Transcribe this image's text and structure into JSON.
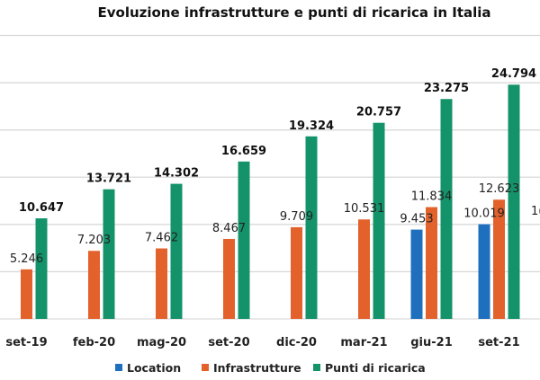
{
  "chart_data": {
    "type": "bar",
    "title": "Evoluzione infrastrutture e punti di ricarica in Italia",
    "xlabel": "",
    "ylabel": "",
    "ylim": [
      0,
      30000
    ],
    "grid": true,
    "gridline_step": 5000,
    "legend_position": "bottom",
    "categories": [
      "set-19",
      "feb-20",
      "mag-20",
      "set-20",
      "dic-20",
      "mar-21",
      "giu-21",
      "set-21"
    ],
    "series": [
      {
        "name": "Location",
        "color": "#1f6fbf",
        "values": [
          null,
          null,
          null,
          null,
          null,
          null,
          9453,
          10019
        ],
        "labels": [
          "",
          "",
          "",
          "",
          "",
          "",
          "9.453",
          "10.019"
        ],
        "label_weight": "normal"
      },
      {
        "name": "Infrastrutture",
        "color": "#e3622c",
        "values": [
          5246,
          7203,
          7462,
          8467,
          9709,
          10531,
          11834,
          12623
        ],
        "labels": [
          "5.246",
          "7.203",
          "7.462",
          "8.467",
          "9.709",
          "10.531",
          "11.834",
          "12.623"
        ],
        "label_weight": "normal"
      },
      {
        "name": "Punti di ricarica",
        "color": "#14936a",
        "values": [
          10647,
          13721,
          14302,
          16659,
          19324,
          20757,
          23275,
          24794
        ],
        "labels": [
          "10.647",
          "13.721",
          "14.302",
          "16.659",
          "19.324",
          "20.757",
          "23.275",
          "24.794"
        ],
        "label_weight": "bold"
      }
    ],
    "clipped_label": "1("
  }
}
